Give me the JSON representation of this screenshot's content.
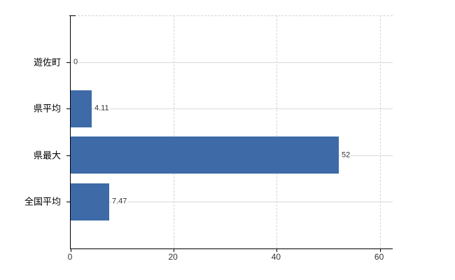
{
  "chart_data": {
    "type": "bar",
    "orientation": "horizontal",
    "title": "",
    "xlabel": "",
    "ylabel": "",
    "categories": [
      "遊佐町",
      "県平均",
      "県最大",
      "全国平均"
    ],
    "values": [
      0,
      4.11,
      52,
      7.47
    ],
    "value_labels": [
      "0",
      "4.11",
      "52",
      "7.47"
    ],
    "x_ticks": [
      0,
      20,
      40,
      60
    ],
    "x_tick_labels": [
      "0",
      "20",
      "40",
      "60"
    ],
    "xlim": [
      0,
      62.5
    ],
    "grid": "on",
    "grid_style": {
      "vertical": "dashed",
      "horizontal": "solid"
    },
    "legend": "none",
    "colors": {
      "bar": "#3e6ba8",
      "axis": "#000000",
      "vertical_grid": "#d5d5d5",
      "horizontal_grid": "#d8ddd3",
      "value_label_text": "#333333",
      "category_label_text": "#000000",
      "tick_label_text": "#333333",
      "background": "#ffffff"
    }
  }
}
